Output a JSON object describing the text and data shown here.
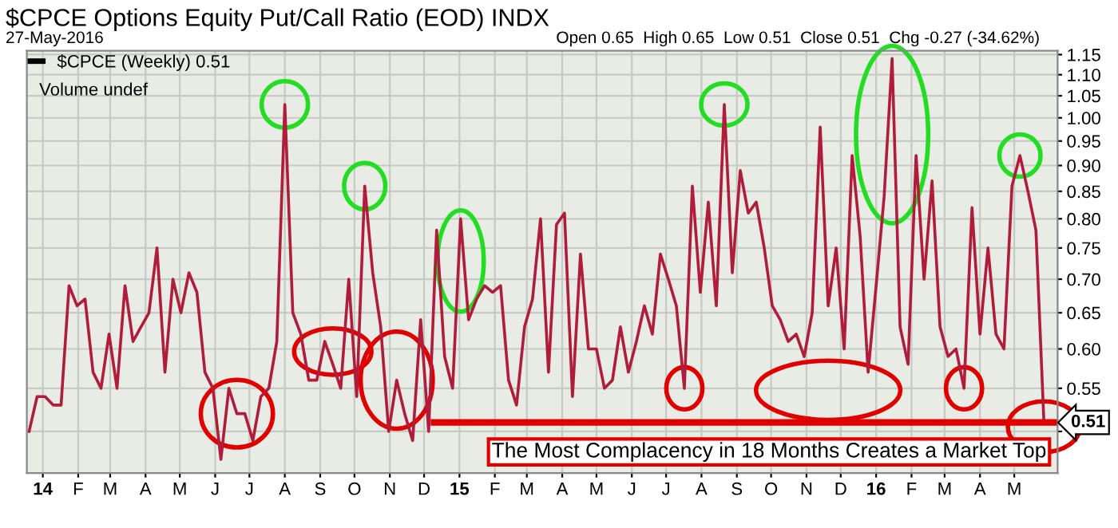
{
  "chart_data": {
    "type": "line",
    "title": "$CPCE Options Equity Put/Call Ratio (EOD) INDX",
    "subtitle": "27-May-2016",
    "annotations": [
      "Open 0.65  High 0.65  Low 0.51  Close 0.51  Chg -0.27 (-34.62%)",
      "Volume undef"
    ],
    "x": [
      "2013-12-20",
      "2013-12-27",
      "2014-01-03",
      "2014-01-10",
      "2014-01-17",
      "2014-01-24",
      "2014-01-31",
      "2014-02-07",
      "2014-02-14",
      "2014-02-21",
      "2014-02-28",
      "2014-03-07",
      "2014-03-14",
      "2014-03-21",
      "2014-03-28",
      "2014-04-04",
      "2014-04-11",
      "2014-04-18",
      "2014-04-25",
      "2014-05-02",
      "2014-05-09",
      "2014-05-16",
      "2014-05-23",
      "2014-05-30",
      "2014-06-06",
      "2014-06-13",
      "2014-06-20",
      "2014-06-27",
      "2014-07-04",
      "2014-07-11",
      "2014-07-18",
      "2014-07-25",
      "2014-08-01",
      "2014-08-08",
      "2014-08-15",
      "2014-08-22",
      "2014-08-29",
      "2014-09-05",
      "2014-09-12",
      "2014-09-19",
      "2014-09-26",
      "2014-10-03",
      "2014-10-10",
      "2014-10-17",
      "2014-10-24",
      "2014-10-31",
      "2014-11-07",
      "2014-11-14",
      "2014-11-21",
      "2014-11-28",
      "2014-12-05",
      "2014-12-12",
      "2014-12-19",
      "2014-12-26",
      "2015-01-02",
      "2015-01-09",
      "2015-01-16",
      "2015-01-23",
      "2015-01-30",
      "2015-02-06",
      "2015-02-13",
      "2015-02-20",
      "2015-02-27",
      "2015-03-06",
      "2015-03-13",
      "2015-03-20",
      "2015-03-27",
      "2015-04-03",
      "2015-04-10",
      "2015-04-17",
      "2015-04-24",
      "2015-05-01",
      "2015-05-08",
      "2015-05-15",
      "2015-05-22",
      "2015-05-29",
      "2015-06-05",
      "2015-06-12",
      "2015-06-19",
      "2015-06-26",
      "2015-07-03",
      "2015-07-10",
      "2015-07-17",
      "2015-07-24",
      "2015-07-31",
      "2015-08-07",
      "2015-08-14",
      "2015-08-21",
      "2015-08-28",
      "2015-09-04",
      "2015-09-11",
      "2015-09-18",
      "2015-09-25",
      "2015-10-02",
      "2015-10-09",
      "2015-10-16",
      "2015-10-23",
      "2015-10-30",
      "2015-11-06",
      "2015-11-13",
      "2015-11-20",
      "2015-11-27",
      "2015-12-04",
      "2015-12-11",
      "2015-12-18",
      "2015-12-25",
      "2016-01-01",
      "2016-01-08",
      "2016-01-15",
      "2016-01-22",
      "2016-01-29",
      "2016-02-05",
      "2016-02-12",
      "2016-02-19",
      "2016-02-26",
      "2016-03-04",
      "2016-03-11",
      "2016-03-18",
      "2016-03-25",
      "2016-04-01",
      "2016-04-08",
      "2016-04-15",
      "2016-04-22",
      "2016-04-29",
      "2016-05-06",
      "2016-05-13",
      "2016-05-20",
      "2016-05-27"
    ],
    "series": [
      {
        "name": "$CPCE (Weekly) 0.51",
        "color": "#b01c3c",
        "values": [
          0.5,
          0.54,
          0.54,
          0.53,
          0.53,
          0.69,
          0.66,
          0.67,
          0.57,
          0.55,
          0.62,
          0.55,
          0.69,
          0.61,
          0.63,
          0.65,
          0.75,
          0.57,
          0.7,
          0.65,
          0.71,
          0.68,
          0.57,
          0.55,
          0.47,
          0.55,
          0.52,
          0.52,
          0.49,
          0.54,
          0.55,
          0.61,
          1.03,
          0.65,
          0.62,
          0.56,
          0.56,
          0.61,
          0.58,
          0.55,
          0.7,
          0.54,
          0.86,
          0.71,
          0.63,
          0.5,
          0.56,
          0.52,
          0.49,
          0.64,
          0.5,
          0.78,
          0.59,
          0.55,
          0.8,
          0.64,
          0.67,
          0.69,
          0.68,
          0.69,
          0.56,
          0.53,
          0.63,
          0.67,
          0.8,
          0.57,
          0.79,
          0.81,
          0.54,
          0.74,
          0.6,
          0.6,
          0.55,
          0.56,
          0.63,
          0.57,
          0.61,
          0.66,
          0.62,
          0.74,
          0.7,
          0.66,
          0.55,
          0.86,
          0.68,
          0.83,
          0.66,
          1.03,
          0.71,
          0.89,
          0.81,
          0.83,
          0.75,
          0.66,
          0.64,
          0.61,
          0.62,
          0.59,
          0.65,
          0.98,
          0.66,
          0.75,
          0.6,
          0.92,
          0.77,
          0.57,
          0.69,
          0.84,
          1.14,
          0.63,
          0.58,
          0.92,
          0.7,
          0.87,
          0.63,
          0.59,
          0.6,
          0.55,
          0.82,
          0.62,
          0.75,
          0.62,
          0.6,
          0.86,
          0.92,
          0.85,
          0.78,
          0.51
        ],
        "value_labels": [
          null,
          null,
          null,
          null,
          null,
          null,
          null,
          null,
          null,
          null,
          null,
          null,
          null,
          null,
          null,
          null,
          null,
          null,
          null,
          null,
          null,
          null,
          null,
          null,
          null,
          null,
          null,
          null,
          null,
          null,
          null,
          null,
          null,
          null,
          null,
          null,
          null,
          null,
          null,
          null,
          null,
          null,
          null,
          null,
          null,
          null,
          null,
          null,
          null,
          null,
          null,
          null,
          null,
          null,
          null,
          null,
          null,
          null,
          null,
          null,
          null,
          null,
          null,
          null,
          null,
          null,
          null,
          null,
          null,
          null,
          null,
          null,
          null,
          null,
          null,
          null,
          null,
          null,
          null,
          null,
          null,
          null,
          null,
          null,
          null,
          null,
          null,
          null,
          null,
          null,
          null,
          null,
          null,
          null,
          null,
          null,
          null,
          null,
          null,
          null,
          null,
          null,
          null,
          null,
          null,
          null,
          null,
          null,
          null,
          null,
          null,
          null,
          null,
          null,
          null,
          null,
          null,
          null,
          null,
          null,
          null,
          null,
          null,
          null,
          null,
          null,
          null,
          "0.51"
        ]
      }
    ],
    "ref_lines": [
      {
        "axis": "y",
        "value": 0.51,
        "label": "The Most Complacency in 18 Months Creates a Market Top",
        "color": "#e00000"
      }
    ],
    "log": "y",
    "ylim": [
      0.456,
      1.16
    ],
    "yticks": [
      {
        "value": 0.5,
        "label": null
      },
      0.55,
      {
        "value": 0.6,
        "label": "0.60"
      },
      0.65,
      {
        "value": 0.7,
        "label": "0.70"
      },
      0.75,
      {
        "value": 0.8,
        "label": "0.80"
      },
      0.85,
      {
        "value": 0.9,
        "label": "0.90"
      },
      0.95,
      {
        "value": 1.0,
        "label": "1.00"
      },
      1.05,
      {
        "value": 1.1,
        "label": "1.10"
      },
      1.15
    ],
    "xlim": [
      "2013-12-18",
      "2016-06-08"
    ],
    "xticks": [
      {
        "value": "2014-01-01",
        "label": "14"
      },
      {
        "value": "2014-02-01",
        "label": "F"
      },
      {
        "value": "2014-03-01",
        "label": "M"
      },
      {
        "value": "2014-04-01",
        "label": "A"
      },
      {
        "value": "2014-05-01",
        "label": "M"
      },
      {
        "value": "2014-06-01",
        "label": "J"
      },
      {
        "value": "2014-07-01",
        "label": "J"
      },
      {
        "value": "2014-08-01",
        "label": "A"
      },
      {
        "value": "2014-09-01",
        "label": "S"
      },
      {
        "value": "2014-10-01",
        "label": "O"
      },
      {
        "value": "2014-11-01",
        "label": "N"
      },
      {
        "value": "2014-12-01",
        "label": "D"
      },
      {
        "value": "2015-01-01",
        "label": "15"
      },
      {
        "value": "2015-02-01",
        "label": "F"
      },
      {
        "value": "2015-03-01",
        "label": "M"
      },
      {
        "value": "2015-04-01",
        "label": "A"
      },
      {
        "value": "2015-05-01",
        "label": "M"
      },
      {
        "value": "2015-06-01",
        "label": "J"
      },
      {
        "value": "2015-07-01",
        "label": "J"
      },
      {
        "value": "2015-08-01",
        "label": "A"
      },
      {
        "value": "2015-09-01",
        "label": "S"
      },
      {
        "value": "2015-10-01",
        "label": "O"
      },
      {
        "value": "2015-11-01",
        "label": "N"
      },
      {
        "value": "2015-12-01",
        "label": "D"
      },
      {
        "value": "2016-01-01",
        "label": "16"
      },
      {
        "value": "2016-02-01",
        "label": "F"
      },
      {
        "value": "2016-03-01",
        "label": "M"
      },
      {
        "value": "2016-04-01",
        "label": "A"
      },
      {
        "value": "2016-05-01",
        "label": "M"
      }
    ],
    "grid": true,
    "legend": "top left",
    "line_style": "solid"
  }
}
